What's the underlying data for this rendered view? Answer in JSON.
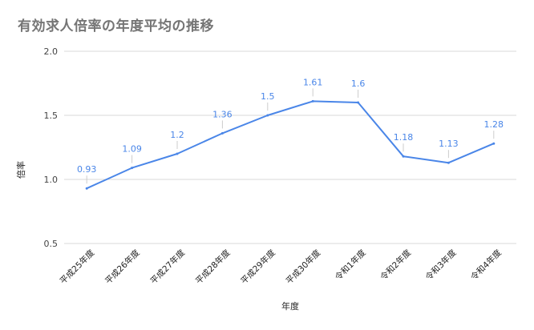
{
  "chart_data": {
    "type": "line",
    "title": "有効求人倍率の年度平均の推移",
    "xlabel": "年度",
    "ylabel": "倍率",
    "categories": [
      "平成25年度",
      "平成26年度",
      "平成27年度",
      "平成28年度",
      "平成29年度",
      "平成30年度",
      "令和1年度",
      "令和2年度",
      "令和3年度",
      "令和4年度"
    ],
    "series": [
      {
        "values": [
          0.93,
          1.09,
          1.2,
          1.36,
          1.5,
          1.61,
          1.6,
          1.18,
          1.13,
          1.28
        ],
        "data_labels": [
          "0.93",
          "1.09",
          "1.2",
          "1.36",
          "1.5",
          "1.61",
          "1.6",
          "1.18",
          "1.13",
          "1.28"
        ]
      }
    ],
    "ylim": [
      0.5,
      2.0
    ],
    "yticks": [
      "0.5",
      "1.0",
      "1.5",
      "2.0"
    ],
    "grid": true,
    "legend": "none",
    "colors": {
      "line": "#4a86e8",
      "grid": "#d9d9d9",
      "title": "#757575"
    }
  }
}
